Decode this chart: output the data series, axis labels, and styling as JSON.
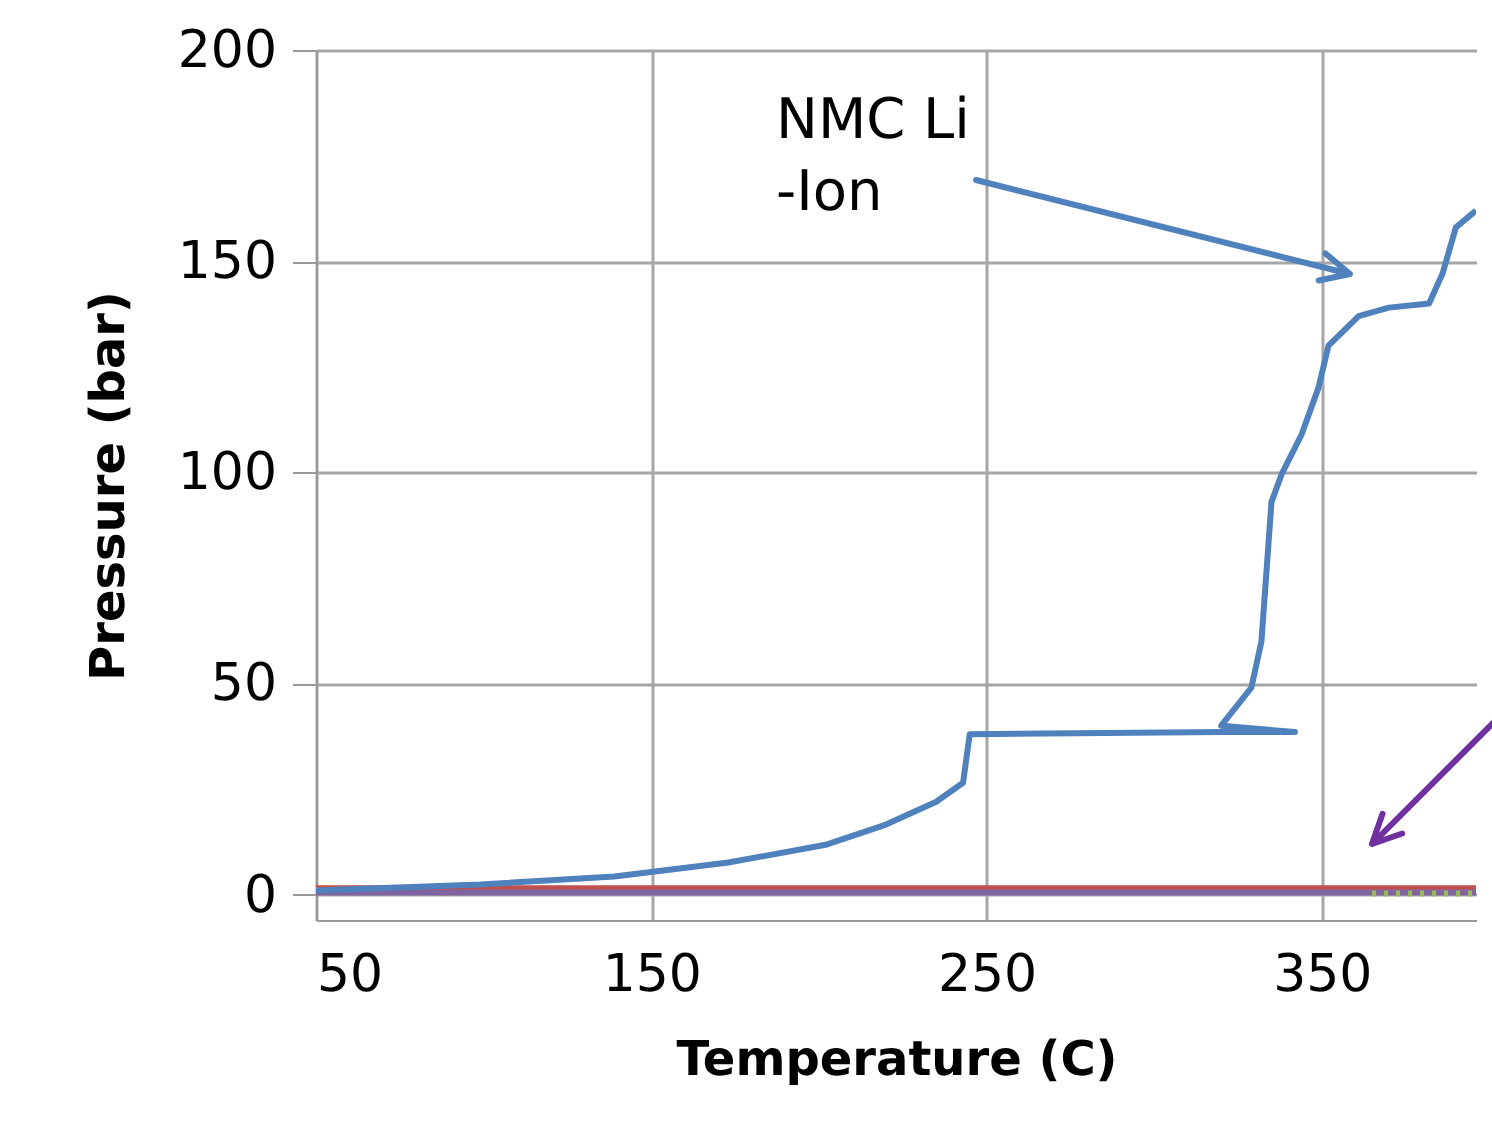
{
  "chart_data": {
    "type": "line",
    "xlabel": "Temperature (C)",
    "ylabel": "Pressure (bar)",
    "xlim": [
      50,
      396
    ],
    "ylim": [
      -6,
      200
    ],
    "xticks": [
      50,
      150,
      250,
      350
    ],
    "yticks": [
      0,
      50,
      100,
      150,
      200
    ],
    "grid": true,
    "series": [
      {
        "color": "#c0504d",
        "x": [
          50,
          100,
          150,
          200,
          250,
          300,
          350,
          396
        ],
        "values": [
          1.5,
          1.5,
          1.5,
          1.5,
          1.5,
          1.5,
          1.5,
          1.5
        ]
      },
      {
        "color": "#8064a2",
        "x": [
          50,
          100,
          150,
          200,
          250,
          300,
          350,
          396
        ],
        "values": [
          0.5,
          0.5,
          0.5,
          0.5,
          0.5,
          0.5,
          0.5,
          0.5
        ]
      },
      {
        "color": "#9bbb59",
        "line_style": "dotted",
        "x": [
          365,
          380,
          396
        ],
        "values": [
          0.3,
          0.3,
          0.3
        ]
      },
      {
        "color": "#4f81bd",
        "x": [
          50,
          99,
          139,
          173,
          202,
          220,
          235,
          243,
          245,
          320.6,
          342,
          320,
          329,
          332,
          335,
          338,
          344,
          349,
          352,
          361,
          370,
          382,
          386,
          390,
          396
        ],
        "values": [
          1,
          2.4,
          4.3,
          7.6,
          11.8,
          16.6,
          22,
          26.5,
          38,
          38.5,
          38.5,
          40,
          49,
          60,
          93,
          99.5,
          109,
          120,
          130,
          137,
          139,
          140,
          147,
          158,
          162
        ]
      }
    ],
    "annotations": [
      "NMC Li\n-Ion"
    ]
  }
}
